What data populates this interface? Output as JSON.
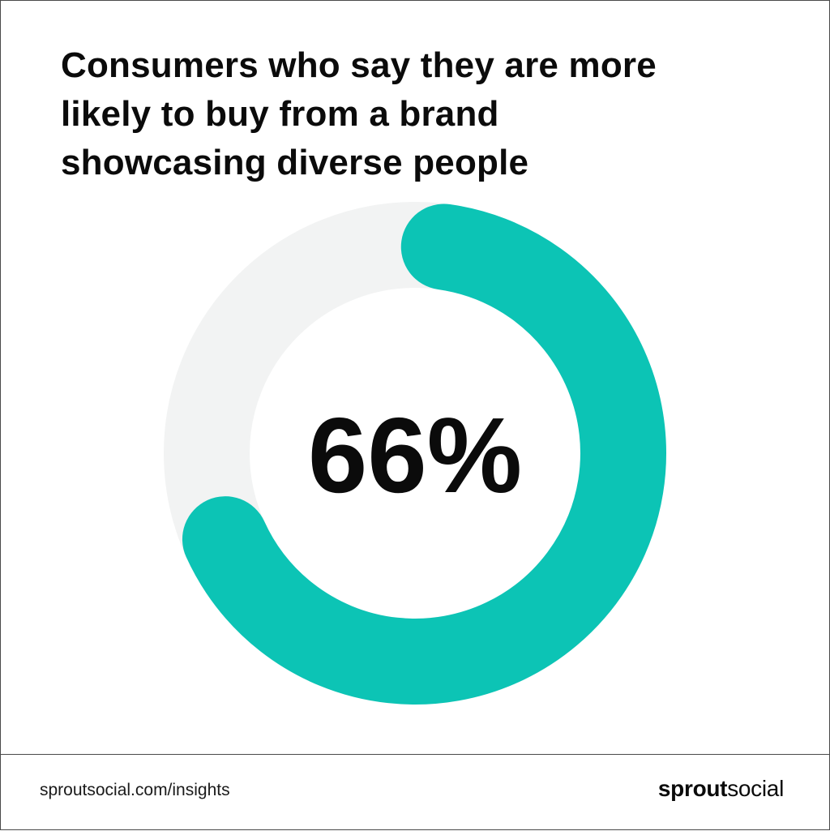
{
  "title_lines": [
    "Consumers who say they are more",
    "likely to buy from a brand",
    "showcasing diverse people"
  ],
  "chart_data": {
    "type": "pie",
    "style": "donut",
    "value_percent": 66,
    "value_label": "66%",
    "colors": {
      "filled": "#0CC4B5",
      "track": "#F2F3F3"
    }
  },
  "footer": {
    "source": "sproutsocial.com/insights",
    "logo_bold": "sprout",
    "logo_light": "social"
  }
}
